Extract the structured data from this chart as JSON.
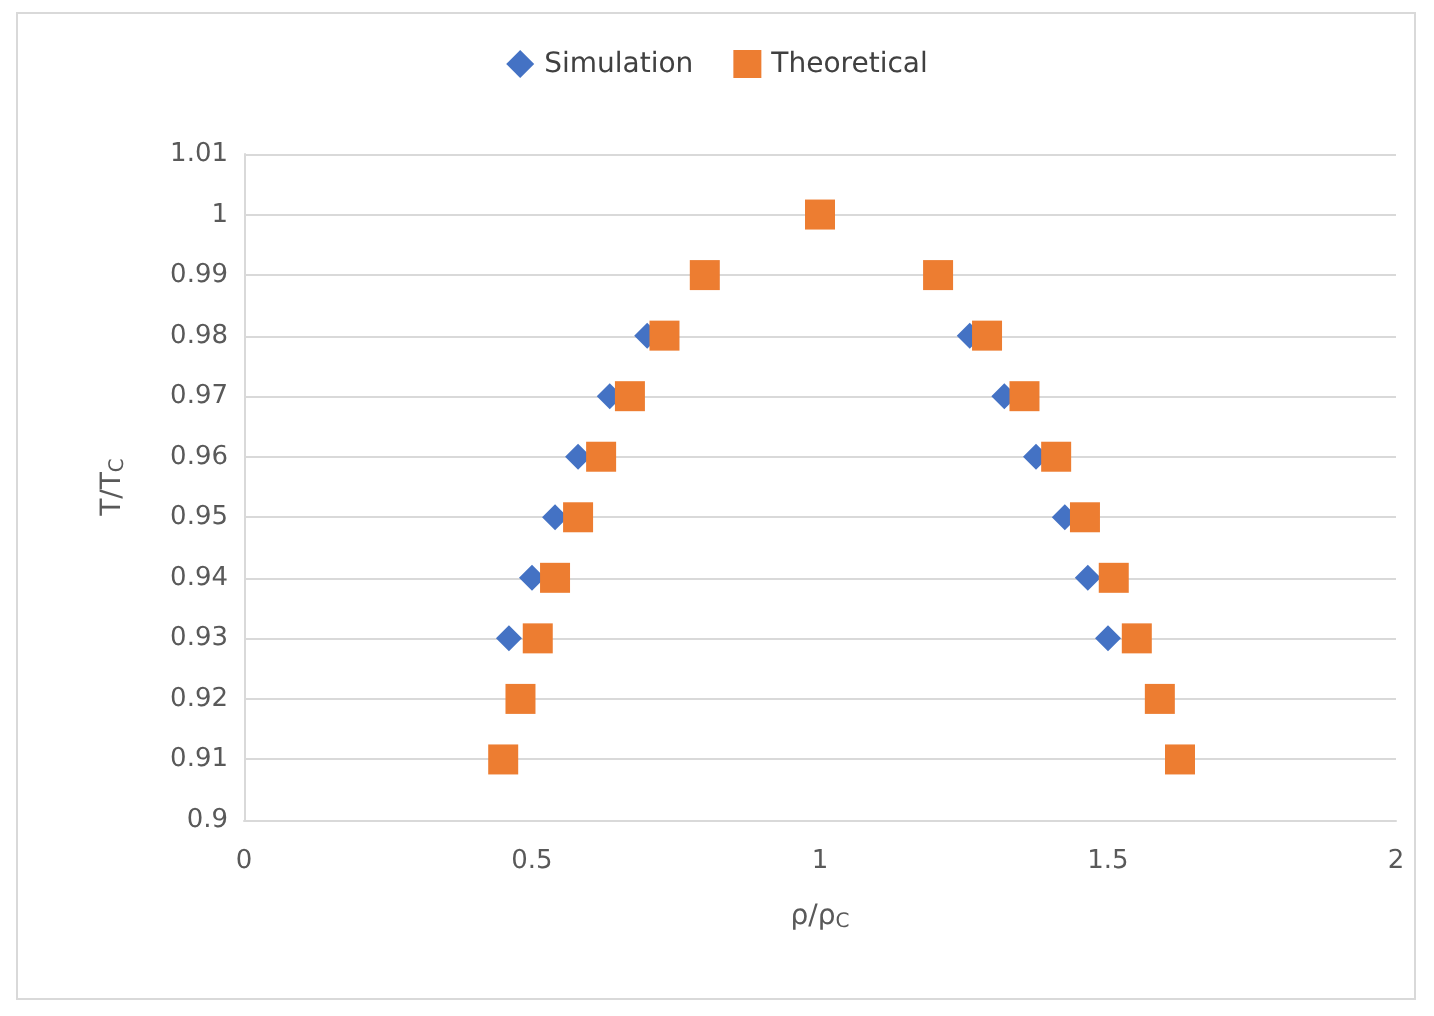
{
  "chart_data": {
    "type": "scatter",
    "xlabel": "ρ/ρ$_{C}$",
    "ylabel": "T/T$_{C}$",
    "xlim": [
      0,
      2
    ],
    "xticks": [
      0,
      0.5,
      1,
      1.5,
      2
    ],
    "ylim": [
      0.9,
      1.01
    ],
    "yticks": [
      0.9,
      0.91,
      0.92,
      0.93,
      0.94,
      0.95,
      0.96,
      0.97,
      0.98,
      0.99,
      1,
      1.01
    ],
    "grid": "y",
    "legend": "top",
    "series": [
      {
        "name": "Simulation",
        "color": "#4472c4",
        "marker": "diamond",
        "x": [
          0.7,
          0.635,
          0.58,
          0.54,
          0.5,
          0.46,
          1.26,
          1.32,
          1.375,
          1.425,
          1.465,
          1.5
        ],
        "values": [
          0.98,
          0.97,
          0.96,
          0.95,
          0.94,
          0.93,
          0.98,
          0.97,
          0.96,
          0.95,
          0.94,
          0.93
        ]
      },
      {
        "name": "Theoretical",
        "color": "#ed7d31",
        "marker": "square",
        "x": [
          1.0,
          0.8,
          0.73,
          0.67,
          0.62,
          0.58,
          0.54,
          0.51,
          0.48,
          0.45,
          1.205,
          1.29,
          1.355,
          1.41,
          1.46,
          1.51,
          1.55,
          1.59,
          1.625
        ],
        "values": [
          1,
          0.99,
          0.98,
          0.97,
          0.96,
          0.95,
          0.94,
          0.93,
          0.92,
          0.91,
          0.99,
          0.98,
          0.97,
          0.96,
          0.95,
          0.94,
          0.93,
          0.92,
          0.91
        ]
      }
    ]
  }
}
